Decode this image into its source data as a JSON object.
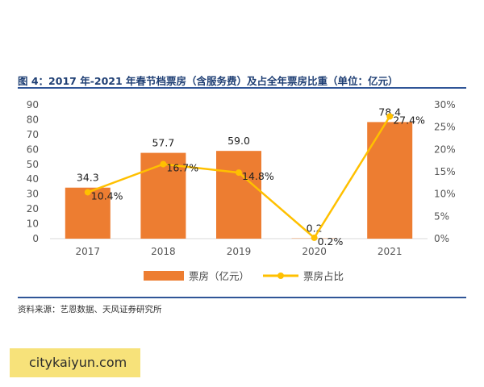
{
  "header": {
    "title": "图 4：2017 年-2021 年春节档票房（含服务费）及占全年票房比重（单位：亿元）"
  },
  "footer": {
    "source": "资料来源：艺恩数据、天风证券研究所"
  },
  "watermark": {
    "text": "citykaiyun.com"
  },
  "colors": {
    "bar": "#ed7d31",
    "line": "#ffc000",
    "title": "#1f3f74",
    "rule": "#2f5597"
  },
  "chart_data": {
    "type": "bar+line",
    "title": "图 4：2017 年-2021 年春节档票房（含服务费）及占全年票房比重（单位：亿元）",
    "categories": [
      "2017",
      "2018",
      "2019",
      "2020",
      "2021"
    ],
    "series": [
      {
        "name": "票房（亿元）",
        "type": "bar",
        "axis": "left",
        "values": [
          34.3,
          57.7,
          59.0,
          0.2,
          78.4
        ],
        "labels": [
          "34.3",
          "57.7",
          "59.0",
          "0.2",
          "78.4"
        ]
      },
      {
        "name": "票房占比",
        "type": "line",
        "axis": "right",
        "values": [
          10.4,
          16.7,
          14.8,
          0.2,
          27.4
        ],
        "labels": [
          "10.4%",
          "16.7%",
          "14.8%",
          "0.2%",
          "27.4%"
        ]
      }
    ],
    "left_axis": {
      "ylim": [
        0,
        90
      ],
      "ticks": [
        0,
        10,
        20,
        30,
        40,
        50,
        60,
        70,
        80,
        90
      ],
      "tick_labels": [
        "0",
        "10",
        "20",
        "30",
        "40",
        "50",
        "60",
        "70",
        "80",
        "90"
      ]
    },
    "right_axis": {
      "ylim": [
        0,
        30
      ],
      "ticks": [
        0,
        5,
        10,
        15,
        20,
        25,
        30
      ],
      "tick_labels": [
        "0%",
        "5%",
        "10%",
        "15%",
        "20%",
        "25%",
        "30%"
      ]
    },
    "legend": {
      "position": "bottom",
      "items": [
        "票房（亿元）",
        "票房占比"
      ]
    },
    "grid": false
  }
}
